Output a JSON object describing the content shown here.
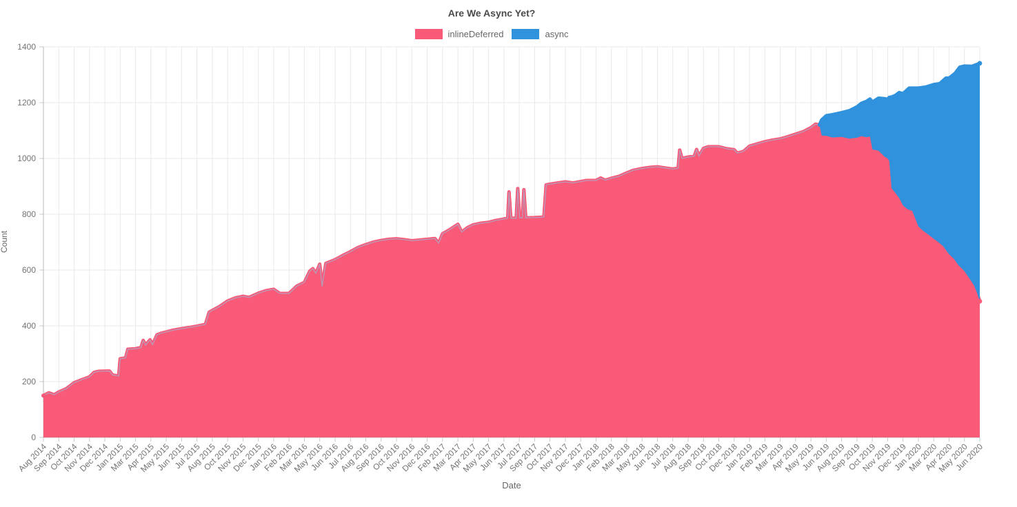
{
  "chart_data": {
    "type": "area",
    "stacked": true,
    "title": "Are We Async Yet?",
    "xlabel": "Date",
    "ylabel": "Count",
    "ylim": [
      0,
      1400
    ],
    "grid": true,
    "legend_position": "top",
    "y_ticks": [
      0,
      200,
      400,
      600,
      800,
      1000,
      1200,
      1400
    ],
    "x_unit": "tick_index (0 = Aug 2014, 61 = Jun 2020; fractional x = intra-month detail)",
    "x_tick_labels": [
      "Aug 2014",
      "Sep 2014",
      "Oct 2014",
      "Nov 2014",
      "Dec 2014",
      "Jan 2015",
      "Mar 2015",
      "Apr 2015",
      "May 2015",
      "Jun 2015",
      "Jul 2015",
      "Aug 2015",
      "Oct 2015",
      "Nov 2015",
      "Dec 2015",
      "Jan 2016",
      "Feb 2016",
      "Mar 2016",
      "May 2016",
      "Jun 2016",
      "Jul 2016",
      "Aug 2016",
      "Sep 2016",
      "Oct 2016",
      "Nov 2016",
      "Dec 2016",
      "Feb 2017",
      "Mar 2017",
      "Apr 2017",
      "May 2017",
      "Jun 2017",
      "Jul 2017",
      "Sep 2017",
      "Oct 2017",
      "Nov 2017",
      "Dec 2017",
      "Jan 2018",
      "Feb 2018",
      "Mar 2018",
      "May 2018",
      "Jun 2018",
      "Jul 2018",
      "Aug 2018",
      "Sep 2018",
      "Oct 2018",
      "Dec 2018",
      "Jan 2019",
      "Feb 2019",
      "Mar 2019",
      "Apr 2019",
      "May 2019",
      "Jun 2019",
      "Aug 2019",
      "Sep 2019",
      "Oct 2019",
      "Nov 2019",
      "Dec 2019",
      "Jan 2020",
      "Mar 2020",
      "Apr 2020",
      "May 2020",
      "Jun 2020"
    ],
    "series": [
      {
        "name": "inlineDeferred",
        "color": "#f95a78",
        "points": [
          [
            0,
            150
          ],
          [
            0.35,
            160
          ],
          [
            0.7,
            153
          ],
          [
            1,
            163
          ],
          [
            1.5,
            175
          ],
          [
            2,
            196
          ],
          [
            2.5,
            207
          ],
          [
            3,
            217
          ],
          [
            3.3,
            233
          ],
          [
            3.6,
            237
          ],
          [
            4.3,
            238
          ],
          [
            4.5,
            224
          ],
          [
            4.9,
            220
          ],
          [
            5,
            282
          ],
          [
            5.35,
            285
          ],
          [
            5.5,
            316
          ],
          [
            6,
            318
          ],
          [
            6.35,
            322
          ],
          [
            6.5,
            348
          ],
          [
            6.65,
            331
          ],
          [
            6.95,
            350
          ],
          [
            7.1,
            332
          ],
          [
            7.4,
            368
          ],
          [
            7.7,
            374
          ],
          [
            8,
            378
          ],
          [
            8.4,
            384
          ],
          [
            9,
            390
          ],
          [
            9.5,
            394
          ],
          [
            10,
            399
          ],
          [
            10.55,
            405
          ],
          [
            10.8,
            449
          ],
          [
            11,
            455
          ],
          [
            11.5,
            470
          ],
          [
            12,
            489
          ],
          [
            12.5,
            500
          ],
          [
            13,
            506
          ],
          [
            13.4,
            502
          ],
          [
            14,
            517
          ],
          [
            14.5,
            526
          ],
          [
            15,
            531
          ],
          [
            15.4,
            516
          ],
          [
            16,
            516
          ],
          [
            16.5,
            542
          ],
          [
            17,
            556
          ],
          [
            17.35,
            596
          ],
          [
            17.55,
            605
          ],
          [
            17.75,
            588
          ],
          [
            18,
            621
          ],
          [
            18.15,
            542
          ],
          [
            18.4,
            624
          ],
          [
            19,
            637
          ],
          [
            19.5,
            652
          ],
          [
            20,
            666
          ],
          [
            20.5,
            681
          ],
          [
            21,
            691
          ],
          [
            21.5,
            700
          ],
          [
            22,
            706
          ],
          [
            22.5,
            710
          ],
          [
            23,
            712
          ],
          [
            23.5,
            709
          ],
          [
            24,
            705
          ],
          [
            24.6,
            708
          ],
          [
            25,
            710
          ],
          [
            25.5,
            713
          ],
          [
            25.75,
            696
          ],
          [
            26,
            730
          ],
          [
            26.5,
            746
          ],
          [
            27,
            764
          ],
          [
            27.25,
            736
          ],
          [
            27.6,
            751
          ],
          [
            28,
            762
          ],
          [
            28.5,
            768
          ],
          [
            29,
            771
          ],
          [
            29.5,
            778
          ],
          [
            30,
            783
          ],
          [
            30.25,
            786
          ],
          [
            30.33,
            880
          ],
          [
            30.45,
            786
          ],
          [
            30.8,
            786
          ],
          [
            30.9,
            892
          ],
          [
            31.02,
            787
          ],
          [
            31.2,
            787
          ],
          [
            31.3,
            888
          ],
          [
            31.42,
            787
          ],
          [
            32,
            788
          ],
          [
            32.6,
            790
          ],
          [
            32.75,
            905
          ],
          [
            33,
            908
          ],
          [
            33.5,
            912
          ],
          [
            34,
            916
          ],
          [
            34.5,
            912
          ],
          [
            35,
            917
          ],
          [
            35.4,
            921
          ],
          [
            36,
            921
          ],
          [
            36.3,
            930
          ],
          [
            36.6,
            922
          ],
          [
            37,
            929
          ],
          [
            37.5,
            936
          ],
          [
            38,
            948
          ],
          [
            38.4,
            957
          ],
          [
            39,
            964
          ],
          [
            39.5,
            968
          ],
          [
            40,
            970
          ],
          [
            40.5,
            966
          ],
          [
            41,
            962
          ],
          [
            41.35,
            965
          ],
          [
            41.45,
            1030
          ],
          [
            41.6,
            1000
          ],
          [
            42,
            1005
          ],
          [
            42.4,
            1008
          ],
          [
            42.55,
            1032
          ],
          [
            42.7,
            1008
          ],
          [
            43,
            1036
          ],
          [
            43.3,
            1042
          ],
          [
            44,
            1042
          ],
          [
            44.5,
            1035
          ],
          [
            45,
            1031
          ],
          [
            45.2,
            1019
          ],
          [
            45.6,
            1025
          ],
          [
            46,
            1044
          ],
          [
            46.5,
            1052
          ],
          [
            47,
            1060
          ],
          [
            47.5,
            1066
          ],
          [
            48,
            1070
          ],
          [
            48.5,
            1078
          ],
          [
            49,
            1087
          ],
          [
            49.5,
            1096
          ],
          [
            50,
            1110
          ],
          [
            50.3,
            1123
          ],
          [
            50.55,
            1120
          ],
          [
            50.7,
            1082
          ],
          [
            51,
            1081
          ],
          [
            51.4,
            1075
          ],
          [
            52,
            1077
          ],
          [
            52.5,
            1071
          ],
          [
            53,
            1074
          ],
          [
            53.3,
            1080
          ],
          [
            53.6,
            1076
          ],
          [
            53.85,
            1078
          ],
          [
            54,
            1032
          ],
          [
            54.4,
            1028
          ],
          [
            54.8,
            1006
          ],
          [
            55,
            1000
          ],
          [
            55.1,
            991
          ],
          [
            55.25,
            893
          ],
          [
            55.5,
            876
          ],
          [
            55.75,
            858
          ],
          [
            56,
            831
          ],
          [
            56.3,
            818
          ],
          [
            56.6,
            812
          ],
          [
            57,
            756
          ],
          [
            57.3,
            741
          ],
          [
            57.6,
            729
          ],
          [
            58,
            712
          ],
          [
            58.3,
            700
          ],
          [
            58.6,
            686
          ],
          [
            59,
            656
          ],
          [
            59.3,
            641
          ],
          [
            59.6,
            618
          ],
          [
            60,
            596
          ],
          [
            60.3,
            572
          ],
          [
            60.6,
            547
          ],
          [
            60.8,
            522
          ],
          [
            61,
            488
          ]
        ]
      },
      {
        "name": "async",
        "color": "#3092dc",
        "points": [
          [
            50.55,
            0
          ],
          [
            50.7,
            56
          ],
          [
            51,
            72
          ],
          [
            51.4,
            82
          ],
          [
            52,
            87
          ],
          [
            52.5,
            100
          ],
          [
            53,
            111
          ],
          [
            53.3,
            118
          ],
          [
            53.6,
            128
          ],
          [
            53.85,
            135
          ],
          [
            54,
            170
          ],
          [
            54.4,
            188
          ],
          [
            54.8,
            208
          ],
          [
            55,
            212
          ],
          [
            55.1,
            228
          ],
          [
            55.25,
            327
          ],
          [
            55.5,
            350
          ],
          [
            55.75,
            378
          ],
          [
            56,
            401
          ],
          [
            56.4,
            436
          ],
          [
            57,
            496
          ],
          [
            57.5,
            523
          ],
          [
            58,
            553
          ],
          [
            58.4,
            573
          ],
          [
            58.8,
            617
          ],
          [
            59,
            632
          ],
          [
            59.4,
            672
          ],
          [
            59.7,
            715
          ],
          [
            60,
            735
          ],
          [
            60.5,
            775
          ],
          [
            61,
            853
          ]
        ]
      }
    ]
  }
}
